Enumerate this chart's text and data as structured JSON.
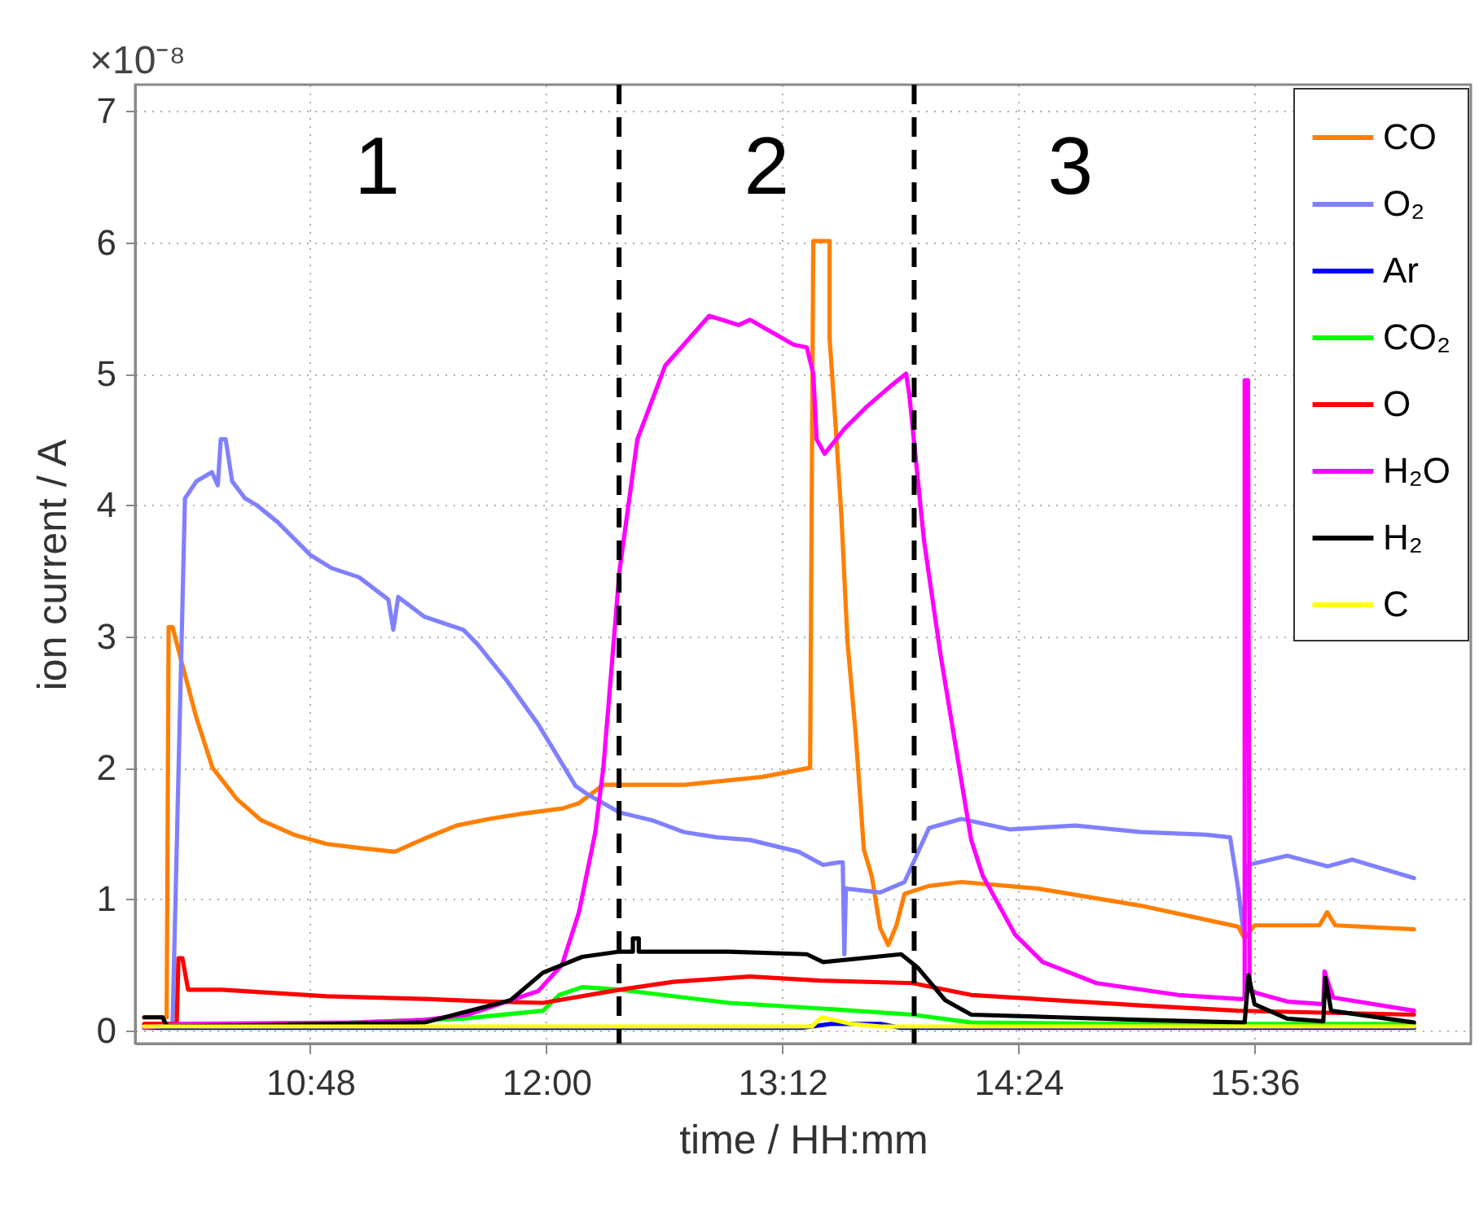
{
  "chart_data": {
    "type": "line",
    "xlabel": "time / HH:mm",
    "ylabel": "ion current / A",
    "xlim": [
      9.91,
      16.7
    ],
    "ylim": [
      -0.1,
      7.2
    ],
    "xticks": [
      {
        "value": 10.8,
        "label": "10:48"
      },
      {
        "value": 12.0,
        "label": "12:00"
      },
      {
        "value": 13.2,
        "label": "13:12"
      },
      {
        "value": 14.4,
        "label": "14:24"
      },
      {
        "value": 15.6,
        "label": "15:36"
      }
    ],
    "yticks": [
      0,
      1,
      2,
      3,
      4,
      5,
      6,
      7
    ],
    "grid": true,
    "legend": "top right",
    "marker": "none",
    "line_style": "solid",
    "ref_lines": [
      {
        "axis": "x",
        "value": 12.37,
        "label": null,
        "color": "#000000",
        "line_style": "dashed"
      },
      {
        "axis": "x",
        "value": 13.87,
        "label": null,
        "color": "#000000",
        "line_style": "dashed"
      }
    ],
    "annotations": [
      "×10⁻⁸",
      "1",
      "2",
      "3"
    ],
    "series": [
      {
        "name": "CO",
        "color": "#ff7f00",
        "x": [
          9.956,
          10.07,
          10.08,
          10.1,
          10.138,
          10.221,
          10.303,
          10.428,
          10.551,
          10.717,
          10.883,
          11.048,
          11.23,
          11.379,
          11.544,
          11.71,
          11.876,
          12.083,
          12.166,
          12.29,
          12.7,
          13.1,
          13.341,
          13.357,
          13.44,
          13.44,
          13.47,
          13.5,
          13.531,
          13.572,
          13.614,
          13.655,
          13.697,
          13.738,
          13.78,
          13.821,
          13.945,
          14.11,
          14.5,
          15.021,
          15.517,
          15.55,
          15.6,
          15.93,
          15.97,
          16.01,
          16.411
        ],
        "values": [
          0.1,
          0.1,
          3.07,
          3.07,
          2.85,
          2.38,
          2.0,
          1.76,
          1.6,
          1.49,
          1.42,
          1.39,
          1.36,
          1.46,
          1.56,
          1.61,
          1.65,
          1.69,
          1.73,
          1.87,
          1.87,
          1.93,
          2.0,
          6.01,
          6.01,
          5.27,
          4.62,
          3.92,
          2.96,
          2.27,
          1.38,
          1.17,
          0.78,
          0.65,
          0.8,
          1.04,
          1.1,
          1.13,
          1.08,
          0.95,
          0.79,
          0.7,
          0.8,
          0.8,
          0.9,
          0.8,
          0.77
        ]
      },
      {
        "name": "O₂",
        "color": "#8080ff",
        "x": [
          9.956,
          10.1,
          10.163,
          10.221,
          10.3,
          10.33,
          10.345,
          10.37,
          10.403,
          10.469,
          10.527,
          10.634,
          10.8,
          10.908,
          11.048,
          11.197,
          11.222,
          11.247,
          11.379,
          11.578,
          11.65,
          11.801,
          11.959,
          12.149,
          12.207,
          12.372,
          12.538,
          12.7,
          12.868,
          13.035,
          13.283,
          13.407,
          13.49,
          13.507,
          13.515,
          13.523,
          13.697,
          13.821,
          13.945,
          14.11,
          14.358,
          14.69,
          15.021,
          15.352,
          15.476,
          15.517,
          15.542,
          15.567,
          15.766,
          15.972,
          16.097,
          16.411
        ],
        "values": [
          0.05,
          0.05,
          4.05,
          4.18,
          4.25,
          4.15,
          4.5,
          4.5,
          4.18,
          4.05,
          4.0,
          3.87,
          3.62,
          3.52,
          3.45,
          3.28,
          3.05,
          3.3,
          3.15,
          3.05,
          2.94,
          2.66,
          2.33,
          1.86,
          1.8,
          1.66,
          1.6,
          1.51,
          1.47,
          1.45,
          1.36,
          1.26,
          1.28,
          1.28,
          0.58,
          1.08,
          1.05,
          1.13,
          1.54,
          1.61,
          1.53,
          1.56,
          1.51,
          1.49,
          1.47,
          1.08,
          0.77,
          1.26,
          1.33,
          1.25,
          1.3,
          1.16
        ]
      },
      {
        "name": "Ar",
        "color": "#0000ff",
        "x": [
          9.956,
          13.3,
          13.45,
          13.7,
          13.8,
          16.411
        ],
        "values": [
          0.02,
          0.02,
          0.05,
          0.05,
          0.02,
          0.02
        ]
      },
      {
        "name": "CO₂",
        "color": "#00ff00",
        "x": [
          11.0,
          11.578,
          11.983,
          12.066,
          12.182,
          12.372,
          12.927,
          13.473,
          13.862,
          14.16,
          15.0,
          16.411
        ],
        "values": [
          0.06,
          0.09,
          0.15,
          0.27,
          0.33,
          0.31,
          0.21,
          0.16,
          0.12,
          0.06,
          0.05,
          0.05
        ]
      },
      {
        "name": "O",
        "color": "#ff0000",
        "x": [
          9.956,
          10.121,
          10.13,
          10.15,
          10.179,
          10.35,
          10.883,
          11.379,
          11.71,
          11.983,
          12.372,
          12.646,
          13.035,
          13.39,
          13.862,
          14.16,
          15.021,
          15.517,
          16.411
        ],
        "values": [
          0.05,
          0.05,
          0.55,
          0.55,
          0.31,
          0.31,
          0.26,
          0.24,
          0.22,
          0.21,
          0.31,
          0.37,
          0.41,
          0.38,
          0.36,
          0.27,
          0.19,
          0.15,
          0.12
        ]
      },
      {
        "name": "H₂O",
        "color": "#ff00ff",
        "x": [
          9.956,
          10.138,
          11.048,
          11.379,
          11.6,
          11.959,
          12.08,
          12.166,
          12.248,
          12.29,
          12.372,
          12.463,
          12.604,
          12.828,
          12.977,
          13.035,
          13.258,
          13.324,
          13.357,
          13.374,
          13.415,
          13.515,
          13.63,
          13.746,
          13.829,
          13.846,
          13.92,
          14.003,
          14.11,
          14.16,
          14.218,
          14.383,
          14.524,
          14.797,
          15.211,
          15.517,
          15.55,
          15.55,
          15.567,
          15.575,
          15.766,
          15.95,
          15.956,
          16.0,
          16.411
        ],
        "values": [
          0.02,
          0.05,
          0.06,
          0.08,
          0.12,
          0.3,
          0.5,
          0.9,
          1.5,
          2.0,
          3.5,
          4.5,
          5.06,
          5.44,
          5.37,
          5.41,
          5.22,
          5.2,
          5.0,
          4.5,
          4.39,
          4.58,
          4.75,
          4.9,
          5.0,
          4.83,
          3.73,
          2.87,
          1.9,
          1.45,
          1.18,
          0.73,
          0.52,
          0.36,
          0.27,
          0.24,
          0.24,
          4.95,
          4.95,
          0.3,
          0.22,
          0.2,
          0.45,
          0.25,
          0.15
        ]
      },
      {
        "name": "H₂",
        "color": "#000000",
        "x": [
          9.956,
          10.05,
          10.07,
          11.379,
          11.818,
          11.983,
          12.182,
          12.372,
          12.44,
          12.44,
          12.47,
          12.47,
          12.927,
          13.324,
          13.407,
          13.804,
          13.887,
          14.028,
          14.16,
          14.607,
          15.021,
          15.55,
          15.57,
          15.6,
          15.766,
          15.95,
          15.96,
          15.99,
          16.411
        ],
        "values": [
          0.1,
          0.1,
          0.03,
          0.06,
          0.23,
          0.44,
          0.56,
          0.6,
          0.6,
          0.7,
          0.7,
          0.6,
          0.6,
          0.58,
          0.52,
          0.58,
          0.48,
          0.23,
          0.12,
          0.1,
          0.08,
          0.06,
          0.42,
          0.2,
          0.09,
          0.07,
          0.4,
          0.15,
          0.06
        ]
      },
      {
        "name": "C",
        "color": "#ffff00",
        "x": [
          9.956,
          13.35,
          13.4,
          13.55,
          13.7,
          16.411
        ],
        "values": [
          0.03,
          0.03,
          0.1,
          0.05,
          0.03,
          0.03
        ]
      }
    ]
  }
}
